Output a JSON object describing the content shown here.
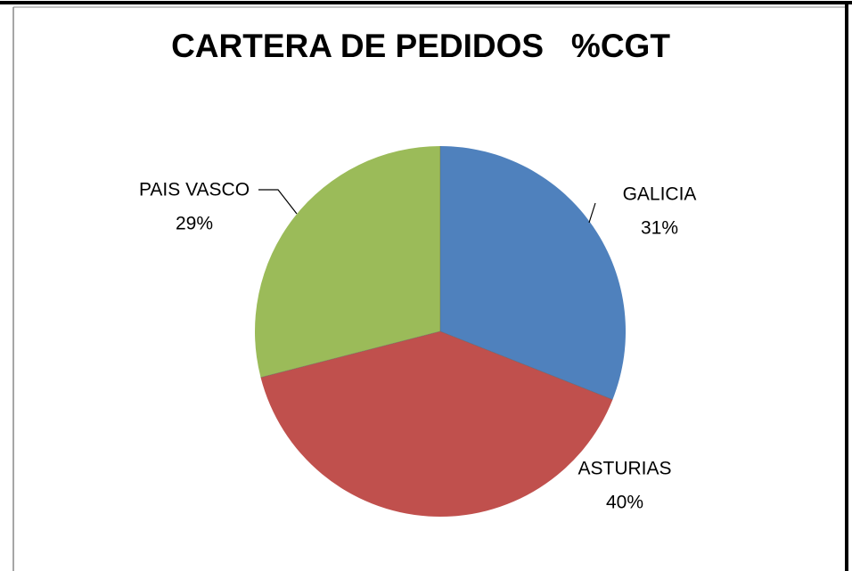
{
  "chart_data": {
    "type": "pie",
    "title": "CARTERA DE PEDIDOS   %CGT",
    "categories": [
      "GALICIA",
      "ASTURIAS",
      "PAIS VASCO"
    ],
    "values": [
      31,
      40,
      29
    ],
    "value_labels": [
      "31%",
      "40%",
      "29%"
    ],
    "colors": [
      "#4f81bd",
      "#c0504d",
      "#9bbb59"
    ]
  }
}
